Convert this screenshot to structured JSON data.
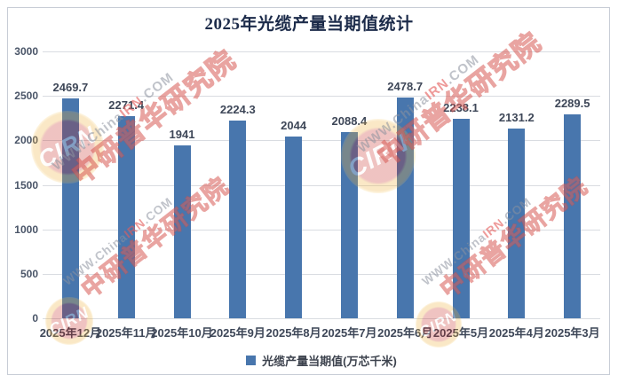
{
  "window": {
    "description": "Bar chart statistics image with watermarks"
  },
  "chart_data": {
    "type": "bar",
    "title": "2025年光缆产量当期值统计",
    "categories": [
      "2025年12月",
      "2025年11月",
      "2025年10月",
      "2025年9月",
      "2025年8月",
      "2025年7月",
      "2025年6月",
      "2025年5月",
      "2025年4月",
      "2025年3月"
    ],
    "values": [
      2469.7,
      2271.4,
      1941,
      2224.3,
      2044,
      2088.4,
      2478.7,
      2238.1,
      2131.2,
      2289.5
    ],
    "value_labels": [
      "2469.7",
      "2271.4",
      "1941",
      "2224.3",
      "2044",
      "2088.4",
      "2478.7",
      "2238.1",
      "2131.2",
      "2289.5"
    ],
    "xlabel": "",
    "ylabel": "",
    "ylim": [
      0,
      3000
    ],
    "yticks": [
      0,
      500,
      1000,
      1500,
      2000,
      2500,
      3000
    ],
    "grid": "horizontal",
    "legend": {
      "position": "bottom",
      "label": "光缆产量当期值(万芯千米)"
    },
    "bar_color": "#4876ad"
  },
  "watermark": {
    "logo_text": "CIRN",
    "url_gray_prefix": "WWW.China",
    "url_red": "IRN",
    "url_gray_suffix": ".COM",
    "org_text": "中研普华研究院"
  },
  "colors": {
    "bar": "#4876ad",
    "title_text": "#1c2b4a",
    "axis_text": "#4a5568",
    "data_label_text": "#3e4758",
    "gridline": "#d9dce1",
    "border": "#c8cdd6",
    "watermark_red": "#d44c46",
    "watermark_gray": "#8c929e"
  }
}
